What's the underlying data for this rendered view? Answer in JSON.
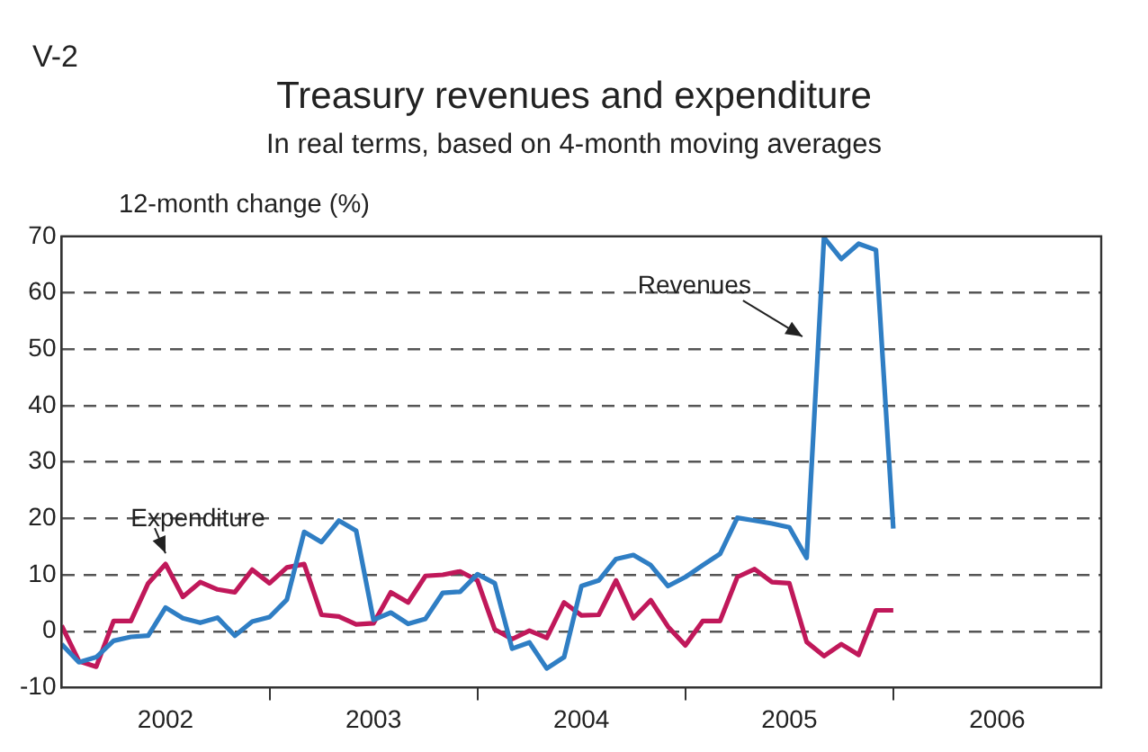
{
  "chart_data": {
    "type": "line",
    "title": "Treasury revenues and expenditure",
    "subtitle": "In real terms, based on 4-month moving averages",
    "ylabel": "12-month change (%)",
    "annotations": [
      "V-2"
    ],
    "x": [
      "2002-01",
      "2002-02",
      "2002-03",
      "2002-04",
      "2002-05",
      "2002-06",
      "2002-07",
      "2002-08",
      "2002-09",
      "2002-10",
      "2002-11",
      "2002-12",
      "2003-01",
      "2003-02",
      "2003-03",
      "2003-04",
      "2003-05",
      "2003-06",
      "2003-07",
      "2003-08",
      "2003-09",
      "2003-10",
      "2003-11",
      "2003-12",
      "2004-01",
      "2004-02",
      "2004-03",
      "2004-04",
      "2004-05",
      "2004-06",
      "2004-07",
      "2004-08",
      "2004-09",
      "2004-10",
      "2004-11",
      "2004-12",
      "2005-01",
      "2005-02",
      "2005-03",
      "2005-04",
      "2005-05",
      "2005-06",
      "2005-07",
      "2005-08",
      "2005-09",
      "2005-10",
      "2005-11",
      "2005-12",
      "2006-01"
    ],
    "series": [
      {
        "name": "Revenues",
        "color": "#2f7ec4",
        "values": [
          -2.3,
          -5.5,
          -4.6,
          -1.7,
          -1.0,
          -0.8,
          4.2,
          2.3,
          1.5,
          2.4,
          -0.8,
          1.7,
          2.5,
          5.6,
          17.6,
          15.8,
          19.6,
          17.8,
          2.0,
          3.3,
          1.3,
          2.2,
          6.8,
          7.0,
          10.1,
          8.5,
          -3.1,
          -2.0,
          -6.6,
          -4.6,
          8.0,
          9.0,
          12.8,
          13.5,
          11.7,
          8.0,
          9.6,
          11.7,
          13.7,
          20.1,
          19.6,
          19.1,
          18.4,
          13.0,
          69.8,
          66.0,
          68.7,
          67.6,
          18.2
        ]
      },
      {
        "name": "Expenditure",
        "color": "#c0185a",
        "values": [
          1.0,
          -5.3,
          -6.3,
          1.8,
          1.8,
          8.5,
          11.9,
          6.1,
          8.7,
          7.4,
          6.9,
          10.9,
          8.5,
          11.3,
          11.9,
          2.9,
          2.6,
          1.2,
          1.4,
          6.9,
          5.1,
          9.8,
          10.0,
          10.6,
          9.0,
          0.3,
          -1.4,
          0.1,
          -1.2,
          5.1,
          2.8,
          2.9,
          9.0,
          2.3,
          5.5,
          0.8,
          -2.5,
          1.8,
          1.8,
          9.6,
          11.0,
          8.7,
          8.5,
          -1.9,
          -4.4,
          -2.3,
          -4.2,
          3.7,
          3.7
        ]
      }
    ],
    "xlim": [
      "2002-01-01",
      "2007-01-01"
    ],
    "xticks": [
      {
        "value": "2002-07-01",
        "label": "2002"
      },
      {
        "value": "2003-01-01",
        "label": null
      },
      {
        "value": "2003-07-01",
        "label": "2003"
      },
      {
        "value": "2004-01-01",
        "label": null
      },
      {
        "value": "2004-07-01",
        "label": "2004"
      },
      {
        "value": "2005-01-01",
        "label": null
      },
      {
        "value": "2005-07-01",
        "label": "2005"
      },
      {
        "value": "2006-01-01",
        "label": null
      },
      {
        "value": "2006-07-01",
        "label": "2006"
      }
    ],
    "ylim": [
      -10,
      70
    ],
    "yticks": [
      -10,
      0,
      10,
      20,
      30,
      40,
      50,
      60,
      70
    ],
    "grid": "y",
    "legend": false,
    "marker": "none",
    "line_style": "solid"
  }
}
